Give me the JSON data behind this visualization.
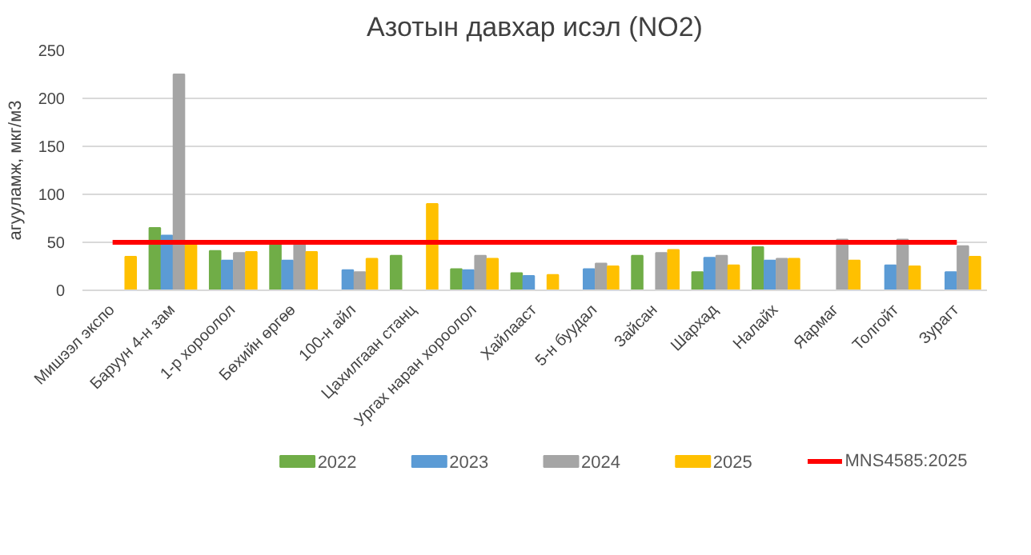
{
  "chart_data": {
    "type": "bar",
    "title": "Азотын давхар исэл (NO2)",
    "ylabel": "агууламж, мкг/м3",
    "categories": [
      "Мишээл экспо",
      "Баруун 4-н зам",
      "1-р хороолол",
      "Бөхийн өргөө",
      "100-н айл",
      "Цахилгаан станц",
      "Ургах наран хороолол",
      "Хайлааст",
      "5-н буудал",
      "Зайсан",
      "Шархад",
      "Налайх",
      "Яармаг",
      "Толгойт",
      "Зурагт"
    ],
    "series": [
      {
        "name": "2022",
        "color": "#70ad47",
        "values": [
          null,
          65,
          41,
          48,
          null,
          36,
          22,
          18,
          null,
          36,
          19,
          45,
          null,
          null,
          null
        ]
      },
      {
        "name": "2023",
        "color": "#5b9bd5",
        "values": [
          null,
          57,
          31,
          31,
          21,
          null,
          21,
          15,
          22,
          null,
          34,
          31,
          null,
          26,
          19
        ]
      },
      {
        "name": "2024",
        "color": "#a5a5a5",
        "values": [
          null,
          225,
          39,
          48,
          19,
          null,
          36,
          null,
          28,
          39,
          36,
          33,
          53,
          53,
          46
        ]
      },
      {
        "name": "2025",
        "color": "#ffc000",
        "values": [
          35,
          48,
          40,
          40,
          33,
          90,
          33,
          16,
          25,
          42,
          26,
          33,
          31,
          25,
          35
        ]
      },
      {
        "name": "MNS4585:2025",
        "type": "line",
        "color": "#ff0000",
        "values": [
          50,
          50,
          50,
          50,
          50,
          50,
          50,
          50,
          50,
          50,
          50,
          50,
          50,
          50,
          50
        ]
      }
    ],
    "ylim": [
      0,
      250
    ],
    "yticks": [
      0,
      50,
      100,
      150,
      200,
      250
    ],
    "grid": "y",
    "legend": "bottom"
  }
}
